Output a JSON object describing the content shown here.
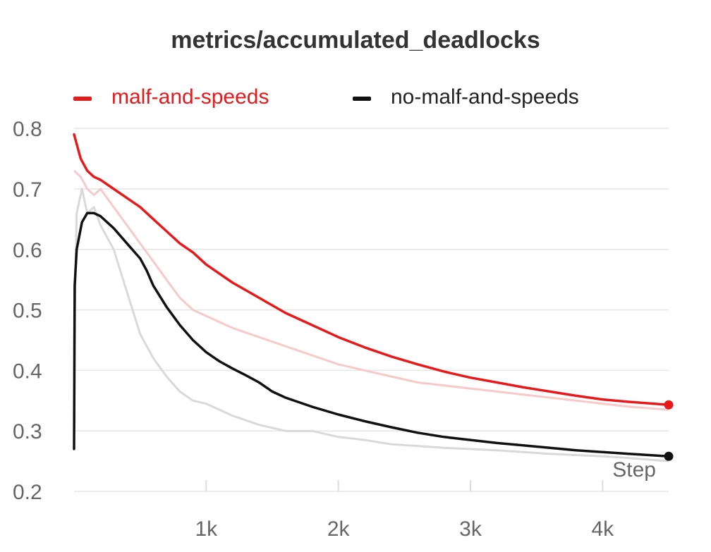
{
  "chart_data": {
    "type": "line",
    "title": "metrics/accumulated_deadlocks",
    "xlabel": "Step",
    "ylabel": "",
    "xlim": [
      0,
      4500
    ],
    "ylim": [
      0.2,
      0.82
    ],
    "x_ticks": [
      1000,
      2000,
      3000,
      4000
    ],
    "x_tick_labels": [
      "1k",
      "2k",
      "3k",
      "4k"
    ],
    "y_ticks": [
      0.2,
      0.3,
      0.4,
      0.5,
      0.6,
      0.7,
      0.8
    ],
    "y_tick_labels": [
      "0.2",
      "0.3",
      "0.4",
      "0.5",
      "0.6",
      "0.7",
      "0.8"
    ],
    "grid": true,
    "legend": "top-left",
    "series": [
      {
        "name": "malf-and-speeds",
        "color": "#e8191a",
        "x": [
          0,
          50,
          100,
          150,
          200,
          300,
          400,
          500,
          600,
          700,
          800,
          900,
          1000,
          1200,
          1400,
          1600,
          1800,
          2000,
          2200,
          2400,
          2600,
          2800,
          3000,
          3200,
          3400,
          3600,
          3800,
          4000,
          4200,
          4500
        ],
        "values": [
          0.79,
          0.75,
          0.73,
          0.72,
          0.715,
          0.7,
          0.685,
          0.67,
          0.65,
          0.63,
          0.61,
          0.595,
          0.575,
          0.545,
          0.52,
          0.495,
          0.475,
          0.455,
          0.438,
          0.423,
          0.41,
          0.398,
          0.388,
          0.38,
          0.372,
          0.365,
          0.358,
          0.352,
          0.348,
          0.343
        ],
        "raw_x": [
          0,
          50,
          100,
          150,
          200,
          300,
          400,
          500,
          600,
          700,
          800,
          900,
          1000,
          1200,
          1400,
          1600,
          1800,
          2000,
          2200,
          2400,
          2600,
          2800,
          3000,
          3200,
          3400,
          3600,
          3800,
          4000,
          4200,
          4500
        ],
        "raw_values": [
          0.73,
          0.72,
          0.7,
          0.69,
          0.7,
          0.67,
          0.64,
          0.61,
          0.58,
          0.55,
          0.52,
          0.5,
          0.49,
          0.47,
          0.455,
          0.44,
          0.425,
          0.41,
          0.4,
          0.39,
          0.38,
          0.375,
          0.37,
          0.365,
          0.36,
          0.355,
          0.35,
          0.345,
          0.34,
          0.335
        ]
      },
      {
        "name": "no-malf-and-speeds",
        "color": "#111111",
        "x": [
          0,
          5,
          20,
          60,
          100,
          150,
          200,
          250,
          300,
          400,
          500,
          550,
          600,
          700,
          800,
          900,
          1000,
          1100,
          1200,
          1300,
          1400,
          1500,
          1600,
          1800,
          2000,
          2200,
          2400,
          2600,
          2800,
          3000,
          3200,
          3400,
          3600,
          3800,
          4000,
          4200,
          4500
        ],
        "values": [
          0.27,
          0.54,
          0.6,
          0.645,
          0.66,
          0.66,
          0.655,
          0.645,
          0.635,
          0.61,
          0.585,
          0.565,
          0.54,
          0.505,
          0.475,
          0.45,
          0.43,
          0.415,
          0.403,
          0.392,
          0.38,
          0.365,
          0.355,
          0.34,
          0.327,
          0.316,
          0.306,
          0.297,
          0.29,
          0.285,
          0.28,
          0.276,
          0.272,
          0.268,
          0.265,
          0.262,
          0.258
        ],
        "raw_x": [
          0,
          20,
          60,
          100,
          150,
          200,
          250,
          300,
          400,
          500,
          600,
          700,
          800,
          900,
          1000,
          1200,
          1400,
          1600,
          1800,
          2000,
          2200,
          2400,
          2600,
          2800,
          3000,
          3200,
          3400,
          3600,
          3800,
          4000,
          4200,
          4500
        ],
        "raw_values": [
          0.43,
          0.66,
          0.7,
          0.66,
          0.67,
          0.64,
          0.62,
          0.6,
          0.53,
          0.46,
          0.42,
          0.39,
          0.365,
          0.35,
          0.345,
          0.325,
          0.31,
          0.3,
          0.3,
          0.29,
          0.285,
          0.278,
          0.275,
          0.272,
          0.27,
          0.268,
          0.265,
          0.262,
          0.26,
          0.258,
          0.255,
          0.25
        ]
      }
    ]
  }
}
